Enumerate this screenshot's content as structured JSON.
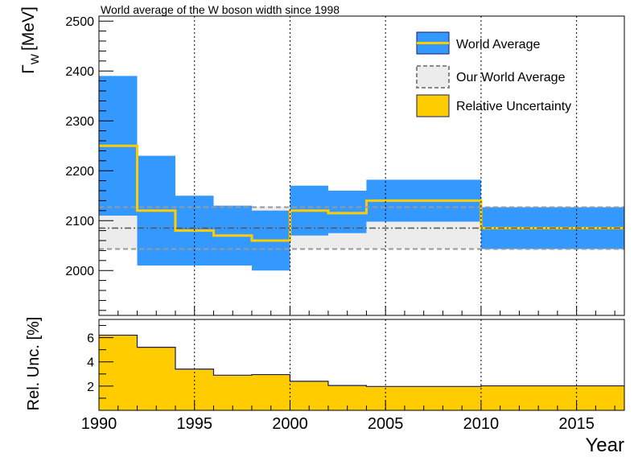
{
  "chart_data": [
    {
      "type": "area",
      "panel": "top",
      "title": "World average of the W boson width since 1998",
      "ylabel": "Γ",
      "ylabel_subscript": "W",
      "ylabel_unit": "[MeV]",
      "xlim": [
        1990,
        2017.5
      ],
      "ylim": [
        1910,
        2510
      ],
      "yticks": [
        2000,
        2100,
        2200,
        2300,
        2400,
        2500
      ],
      "ytick_labels": [
        "2000",
        "2100",
        "2200",
        "2300",
        "2400",
        "2500"
      ],
      "vertical_gridlines": [
        1995,
        2000,
        2005,
        2010,
        2015
      ],
      "world_average": {
        "name": "World Average",
        "color_band": "#3399ff",
        "color_line": "#ffcc00",
        "steps": [
          {
            "x0": 1990,
            "x1": 1992,
            "value": 2250,
            "low": 2110,
            "high": 2390
          },
          {
            "x0": 1992,
            "x1": 1994,
            "value": 2120,
            "low": 2010,
            "high": 2230
          },
          {
            "x0": 1994,
            "x1": 1996,
            "value": 2080,
            "low": 2010,
            "high": 2150
          },
          {
            "x0": 1996,
            "x1": 1998,
            "value": 2070,
            "low": 2010,
            "high": 2130
          },
          {
            "x0": 1998,
            "x1": 2000,
            "value": 2060,
            "low": 2000,
            "high": 2120
          },
          {
            "x0": 2000,
            "x1": 2002,
            "value": 2120,
            "low": 2070,
            "high": 2170
          },
          {
            "x0": 2002,
            "x1": 2004,
            "value": 2115,
            "low": 2075,
            "high": 2160
          },
          {
            "x0": 2004,
            "x1": 2010,
            "value": 2140,
            "low": 2098,
            "high": 2182
          },
          {
            "x0": 2010,
            "x1": 2017.5,
            "value": 2085,
            "low": 2043,
            "high": 2127
          }
        ]
      },
      "our_world_average": {
        "name": "Our World Average",
        "value": 2085,
        "low": 2043,
        "high": 2127,
        "color_fill": "#ececec",
        "color_edge": "#999999"
      },
      "legend": {
        "placement": "top-right",
        "entries": [
          "World Average",
          "Our World Average",
          "Relative Uncertainty"
        ]
      }
    },
    {
      "type": "area",
      "panel": "bottom",
      "name": "Relative Uncertainty",
      "ylabel": "Rel. Unc. [%]",
      "xlabel": "Year",
      "xlim": [
        1990,
        2017.5
      ],
      "ylim": [
        0,
        7.5
      ],
      "yticks": [
        2,
        4,
        6
      ],
      "ytick_labels": [
        "2",
        "4",
        "6"
      ],
      "xticks": [
        1990,
        1995,
        2000,
        2005,
        2010,
        2015
      ],
      "xtick_labels": [
        "1990",
        "1995",
        "2000",
        "2005",
        "2010",
        "2015"
      ],
      "vertical_gridlines": [
        1995,
        2000,
        2005,
        2010,
        2015
      ],
      "color_fill": "#ffcc00",
      "color_edge": "#1a1a66",
      "steps": [
        {
          "x0": 1990,
          "x1": 1992,
          "value": 6.2
        },
        {
          "x0": 1992,
          "x1": 1994,
          "value": 5.2
        },
        {
          "x0": 1994,
          "x1": 1996,
          "value": 3.4
        },
        {
          "x0": 1996,
          "x1": 1998,
          "value": 2.9
        },
        {
          "x0": 1998,
          "x1": 2000,
          "value": 2.95
        },
        {
          "x0": 2000,
          "x1": 2002,
          "value": 2.4
        },
        {
          "x0": 2002,
          "x1": 2004,
          "value": 2.05
        },
        {
          "x0": 2004,
          "x1": 2010,
          "value": 1.97
        },
        {
          "x0": 2010,
          "x1": 2017.5,
          "value": 2.02
        }
      ]
    }
  ]
}
